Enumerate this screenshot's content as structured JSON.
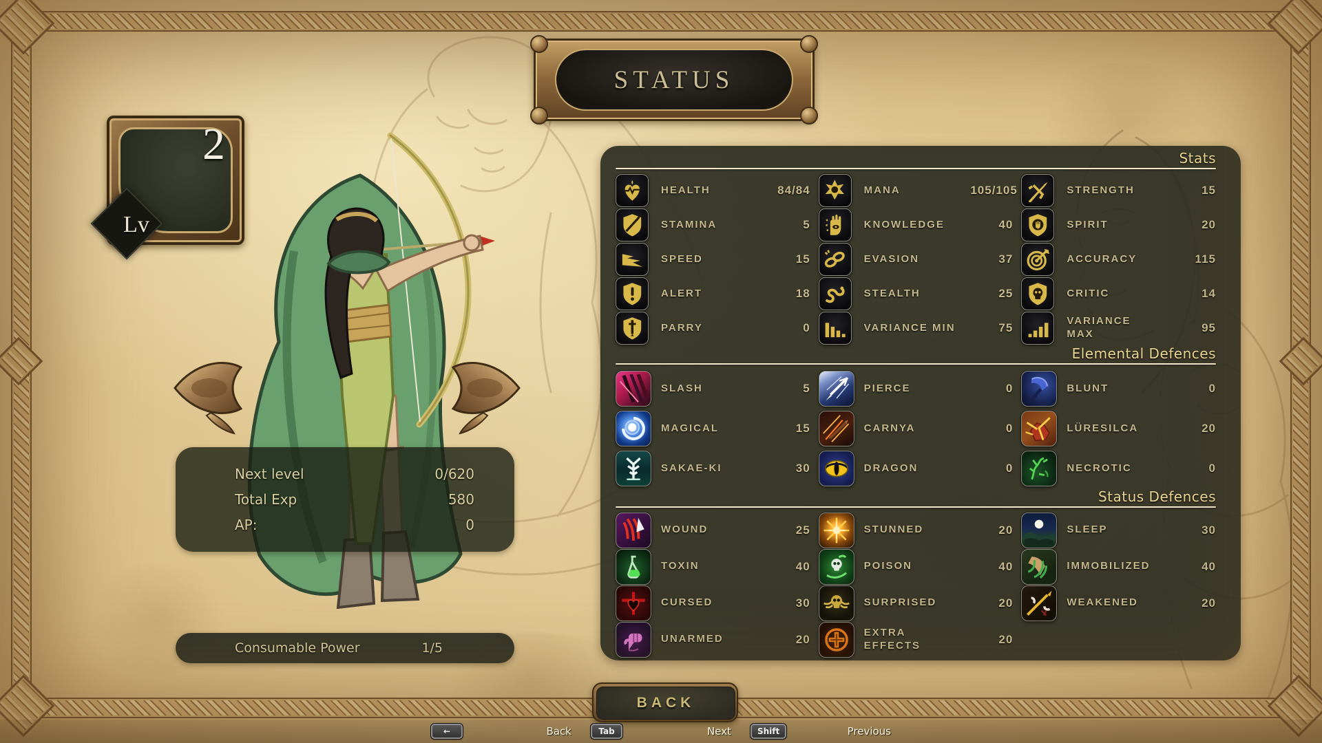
{
  "title": "STATUS",
  "level": {
    "label": "Lv",
    "value": "2"
  },
  "panel": {
    "sections": [
      {
        "label": "Stats",
        "items": [
          {
            "icon": "health-icon",
            "label": "HEALTH",
            "value": "84/84"
          },
          {
            "icon": "mana-icon",
            "label": "MANA",
            "value": "105/105"
          },
          {
            "icon": "strength-icon",
            "label": "STRENGTH",
            "value": "15"
          },
          {
            "icon": "stamina-icon",
            "label": "STAMINA",
            "value": "5"
          },
          {
            "icon": "knowledge-icon",
            "label": "KNOWLEDGE",
            "value": "40"
          },
          {
            "icon": "spirit-icon",
            "label": "SPIRIT",
            "value": "20"
          },
          {
            "icon": "speed-icon",
            "label": "SPEED",
            "value": "15"
          },
          {
            "icon": "evasion-icon",
            "label": "EVASION",
            "value": "37"
          },
          {
            "icon": "accuracy-icon",
            "label": "ACCURACY",
            "value": "115"
          },
          {
            "icon": "alert-icon",
            "label": "ALERT",
            "value": "18"
          },
          {
            "icon": "stealth-icon",
            "label": "STEALTH",
            "value": "25"
          },
          {
            "icon": "critic-icon",
            "label": "CRITIC",
            "value": "14"
          },
          {
            "icon": "parry-icon",
            "label": "PARRY",
            "value": "0"
          },
          {
            "icon": "variance-min-icon",
            "label": "VARIANCE MIN",
            "value": "75"
          },
          {
            "icon": "variance-max-icon",
            "label": "VARIANCE MAX",
            "value": "95"
          }
        ]
      },
      {
        "label": "Elemental Defences",
        "items": [
          {
            "icon": "slash-icon",
            "label": "SLASH",
            "value": "5"
          },
          {
            "icon": "pierce-icon",
            "label": "PIERCE",
            "value": "0"
          },
          {
            "icon": "blunt-icon",
            "label": "BLUNT",
            "value": "0"
          },
          {
            "icon": "magical-icon",
            "label": "MAGICAL",
            "value": "15"
          },
          {
            "icon": "carnya-icon",
            "label": "CARNYA",
            "value": "0"
          },
          {
            "icon": "luresilca-icon",
            "label": "LÜRESILCA",
            "value": "20"
          },
          {
            "icon": "sakae-ki-icon",
            "label": "SAKAE-KI",
            "value": "30"
          },
          {
            "icon": "dragon-icon",
            "label": "DRAGON",
            "value": "0"
          },
          {
            "icon": "necrotic-icon",
            "label": "NECROTIC",
            "value": "0"
          }
        ]
      },
      {
        "label": "Status Defences",
        "items": [
          {
            "icon": "wound-icon",
            "label": "WOUND",
            "value": "25"
          },
          {
            "icon": "stunned-icon",
            "label": "STUNNED",
            "value": "20"
          },
          {
            "icon": "sleep-icon",
            "label": "SLEEP",
            "value": "30"
          },
          {
            "icon": "toxin-icon",
            "label": "TOXIN",
            "value": "40"
          },
          {
            "icon": "poison-icon",
            "label": "POISON",
            "value": "40"
          },
          {
            "icon": "immobilized-icon",
            "label": "IMMOBILIZED",
            "value": "40"
          },
          {
            "icon": "cursed-icon",
            "label": "CURSED",
            "value": "30"
          },
          {
            "icon": "surprised-icon",
            "label": "SURPRISED",
            "value": "20"
          },
          {
            "icon": "weakened-icon",
            "label": "WEAKENED",
            "value": "20"
          },
          {
            "icon": "unarmed-icon",
            "label": "UNARMED",
            "value": "20"
          },
          {
            "icon": "extra-effects-icon",
            "label": "EXTRA EFFECTS",
            "value": "20"
          }
        ]
      }
    ]
  },
  "exp_panel": {
    "rows": [
      {
        "label": "Next level",
        "value": "0/620"
      },
      {
        "label": "Total Exp",
        "value": "580"
      },
      {
        "label": "AP:",
        "value": "0"
      }
    ]
  },
  "consumable": {
    "label": "Consumable Power",
    "value": "1/5"
  },
  "back_button": {
    "label": "BACK"
  },
  "hints": [
    {
      "key": "←",
      "key_icon": "backspace-key-icon",
      "label": "Back"
    },
    {
      "key": "Tab",
      "key_icon": "tab-key-icon",
      "label": "Next"
    },
    {
      "key": "Shift",
      "key_icon": "shift-key-icon",
      "label": "Previous"
    }
  ],
  "colors": {
    "parchment": "#e7d4a4",
    "panel_dark": "#2c2e22",
    "gold_icon": "#d9b84a",
    "label_text": "#c6b98e",
    "section_label": "#ead792",
    "bronze": "#8f6a3c",
    "title_text": "#cbbd92"
  }
}
